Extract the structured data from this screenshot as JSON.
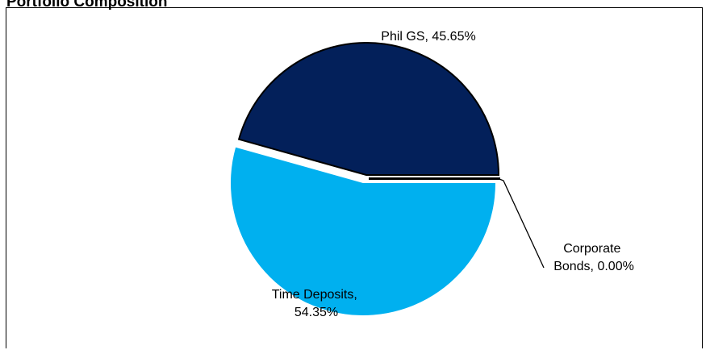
{
  "chart_data": {
    "type": "pie",
    "title": "Portfolio Composition",
    "slices": [
      {
        "label_lines": [
          "Phil GS, 45.65%"
        ],
        "value": 45.65,
        "color": "#03205A"
      },
      {
        "label_lines": [
          "Corporate",
          "Bonds, 0.00%"
        ],
        "value": 0.0,
        "color": "#ffffff"
      },
      {
        "label_lines": [
          "Time Deposits,",
          "54.35%"
        ],
        "value": 54.35,
        "color": "#00B0EF"
      }
    ]
  }
}
